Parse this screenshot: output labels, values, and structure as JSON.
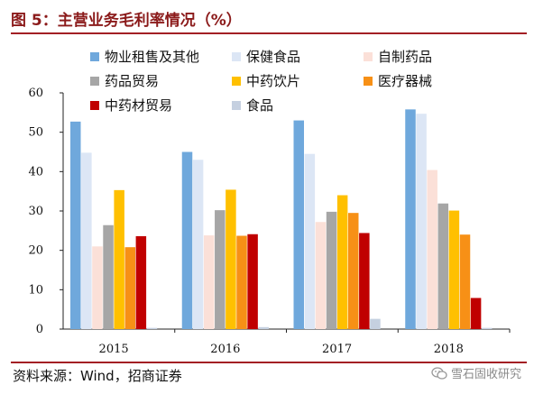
{
  "header": {
    "title": "图 5：主营业务毛利率情况（%）"
  },
  "footer": {
    "source": "资料来源：Wind，招商证券",
    "watermark": "雪石固收研究"
  },
  "icons": {
    "watermark": "wechat-icon"
  },
  "chart_data": {
    "type": "bar",
    "title": "图 5：主营业务毛利率情况（%）",
    "xlabel": "",
    "ylabel": "",
    "ylim": [
      0,
      60
    ],
    "yticks": [
      0,
      10,
      20,
      30,
      40,
      50,
      60
    ],
    "grid": false,
    "legend_position": "top",
    "categories": [
      "2015",
      "2016",
      "2017",
      "2018"
    ],
    "series": [
      {
        "name": "物业租售及其他",
        "color": "#6fa8dc",
        "values": [
          52.7,
          45.0,
          53.0,
          55.8
        ]
      },
      {
        "name": "保健食品",
        "color": "#dce6f5",
        "values": [
          44.8,
          43.0,
          44.5,
          54.7
        ]
      },
      {
        "name": "自制药品",
        "color": "#fbe0d8",
        "values": [
          21.0,
          23.8,
          27.2,
          40.4
        ]
      },
      {
        "name": "药品贸易",
        "color": "#a6a6a6",
        "values": [
          26.4,
          30.2,
          29.8,
          31.9
        ]
      },
      {
        "name": "中药饮片",
        "color": "#ffc000",
        "values": [
          35.3,
          35.4,
          34.0,
          30.1
        ]
      },
      {
        "name": "医疗器械",
        "color": "#f79016",
        "values": [
          20.8,
          23.7,
          29.5,
          24.0
        ]
      },
      {
        "name": "中药材贸易",
        "color": "#c00000",
        "values": [
          23.6,
          24.1,
          24.4,
          7.9
        ]
      },
      {
        "name": "食品",
        "color": "#c5d0e0",
        "values": [
          0.3,
          0.5,
          2.6,
          0.3
        ]
      }
    ]
  }
}
